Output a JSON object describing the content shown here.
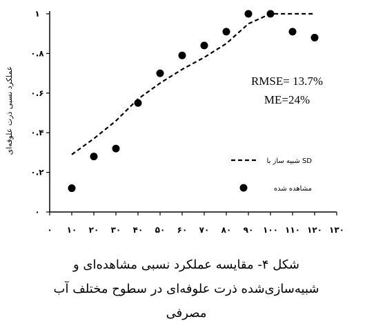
{
  "chart_data": {
    "type": "scatter",
    "ylabel": "عملکرد نسبی ذرت علوفه‌ای",
    "xlim": [
      0,
      130
    ],
    "ylim": [
      0,
      1
    ],
    "x_ticks": [
      0,
      10,
      20,
      30,
      40,
      50,
      60,
      70,
      80,
      90,
      100,
      110,
      120,
      130
    ],
    "x_tick_labels": [
      "۰",
      "۱۰",
      "۲۰",
      "۳۰",
      "۴۰",
      "۵۰",
      "۶۰",
      "۷۰",
      "۸۰",
      "۹۰",
      "۱۰۰",
      "۱۱۰",
      "۱۲۰",
      "۱۳۰"
    ],
    "y_ticks": [
      0,
      0.2,
      0.4,
      0.6,
      0.8,
      1
    ],
    "y_tick_labels": [
      "۰",
      "۰.۲",
      "۰.۴",
      "۰.۶",
      "۰.۸",
      "۱"
    ],
    "grid": false,
    "legend_position": "right",
    "series": [
      {
        "name": "شبیه ساز با SD",
        "kind": "line",
        "style": "dashed",
        "x": [
          10,
          20,
          30,
          40,
          50,
          60,
          70,
          80,
          90,
          100,
          110,
          120
        ],
        "y": [
          0.29,
          0.37,
          0.46,
          0.57,
          0.65,
          0.72,
          0.78,
          0.85,
          0.95,
          1.0,
          1.0,
          1.0
        ]
      },
      {
        "name": "مشاهده شده",
        "kind": "scatter",
        "x": [
          10,
          20,
          30,
          40,
          50,
          60,
          70,
          80,
          90,
          100,
          110,
          120
        ],
        "y": [
          0.12,
          0.28,
          0.32,
          0.55,
          0.7,
          0.79,
          0.84,
          0.91,
          1.0,
          1.0,
          0.91,
          0.88
        ]
      }
    ],
    "annotations": [
      "RMSE= 13.7%",
      "ME=24%"
    ]
  },
  "caption": {
    "line1": "شکل ۴- مقایسه عملکرد نسبی مشاهده‌ای و",
    "line2": "شبیه‌سازی‌شده ذرت علوفه‌ای در سطوح مختلف آب",
    "line3": "مصرفی"
  }
}
